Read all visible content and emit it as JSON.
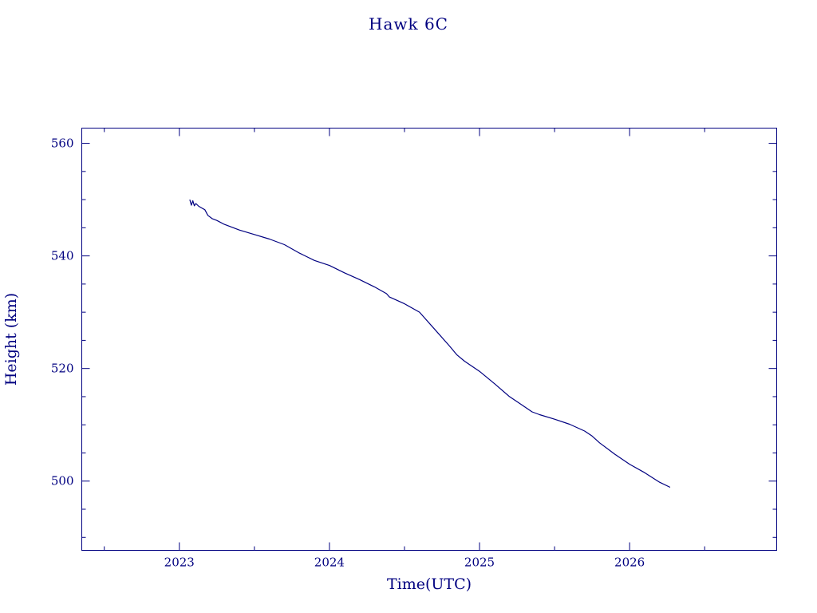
{
  "chart_data": {
    "type": "line",
    "title": "Hawk 6C",
    "xlabel": "Time(UTC)",
    "ylabel": "Height (km)",
    "xlim": [
      2022.35,
      2026.98
    ],
    "ylim": [
      487.7,
      562.7
    ],
    "x_ticks": [
      2023,
      2024,
      2025,
      2026
    ],
    "x_tick_labels": [
      "2023",
      "2024",
      "2025",
      "2026"
    ],
    "y_ticks": [
      500,
      520,
      540,
      560
    ],
    "y_tick_labels": [
      "500",
      "520",
      "540",
      "560"
    ],
    "grid": false,
    "series": [
      {
        "color": "#000080",
        "x": [
          2023.07,
          2023.08,
          2023.09,
          2023.1,
          2023.11,
          2023.13,
          2023.17,
          2023.19,
          2023.22,
          2023.25,
          2023.3,
          2023.4,
          2023.5,
          2023.6,
          2023.7,
          2023.8,
          2023.9,
          2024.0,
          2024.1,
          2024.2,
          2024.3,
          2024.38,
          2024.4,
          2024.45,
          2024.5,
          2024.6,
          2024.7,
          2024.8,
          2024.85,
          2024.9,
          2025.0,
          2025.1,
          2025.2,
          2025.3,
          2025.35,
          2025.4,
          2025.5,
          2025.6,
          2025.7,
          2025.75,
          2025.8,
          2025.9,
          2026.0,
          2026.1,
          2026.2,
          2026.27
        ],
        "y": [
          550.0,
          549.0,
          549.8,
          548.9,
          549.3,
          548.8,
          548.2,
          547.2,
          546.6,
          546.3,
          545.6,
          544.6,
          543.8,
          543.0,
          542.0,
          540.5,
          539.2,
          538.3,
          537.0,
          535.8,
          534.5,
          533.3,
          532.7,
          532.1,
          531.5,
          530.0,
          527.0,
          524.0,
          522.4,
          521.3,
          519.5,
          517.3,
          515.0,
          513.2,
          512.3,
          511.8,
          511.0,
          510.1,
          508.9,
          508.0,
          506.8,
          504.8,
          503.0,
          501.5,
          499.8,
          498.9
        ]
      }
    ]
  }
}
